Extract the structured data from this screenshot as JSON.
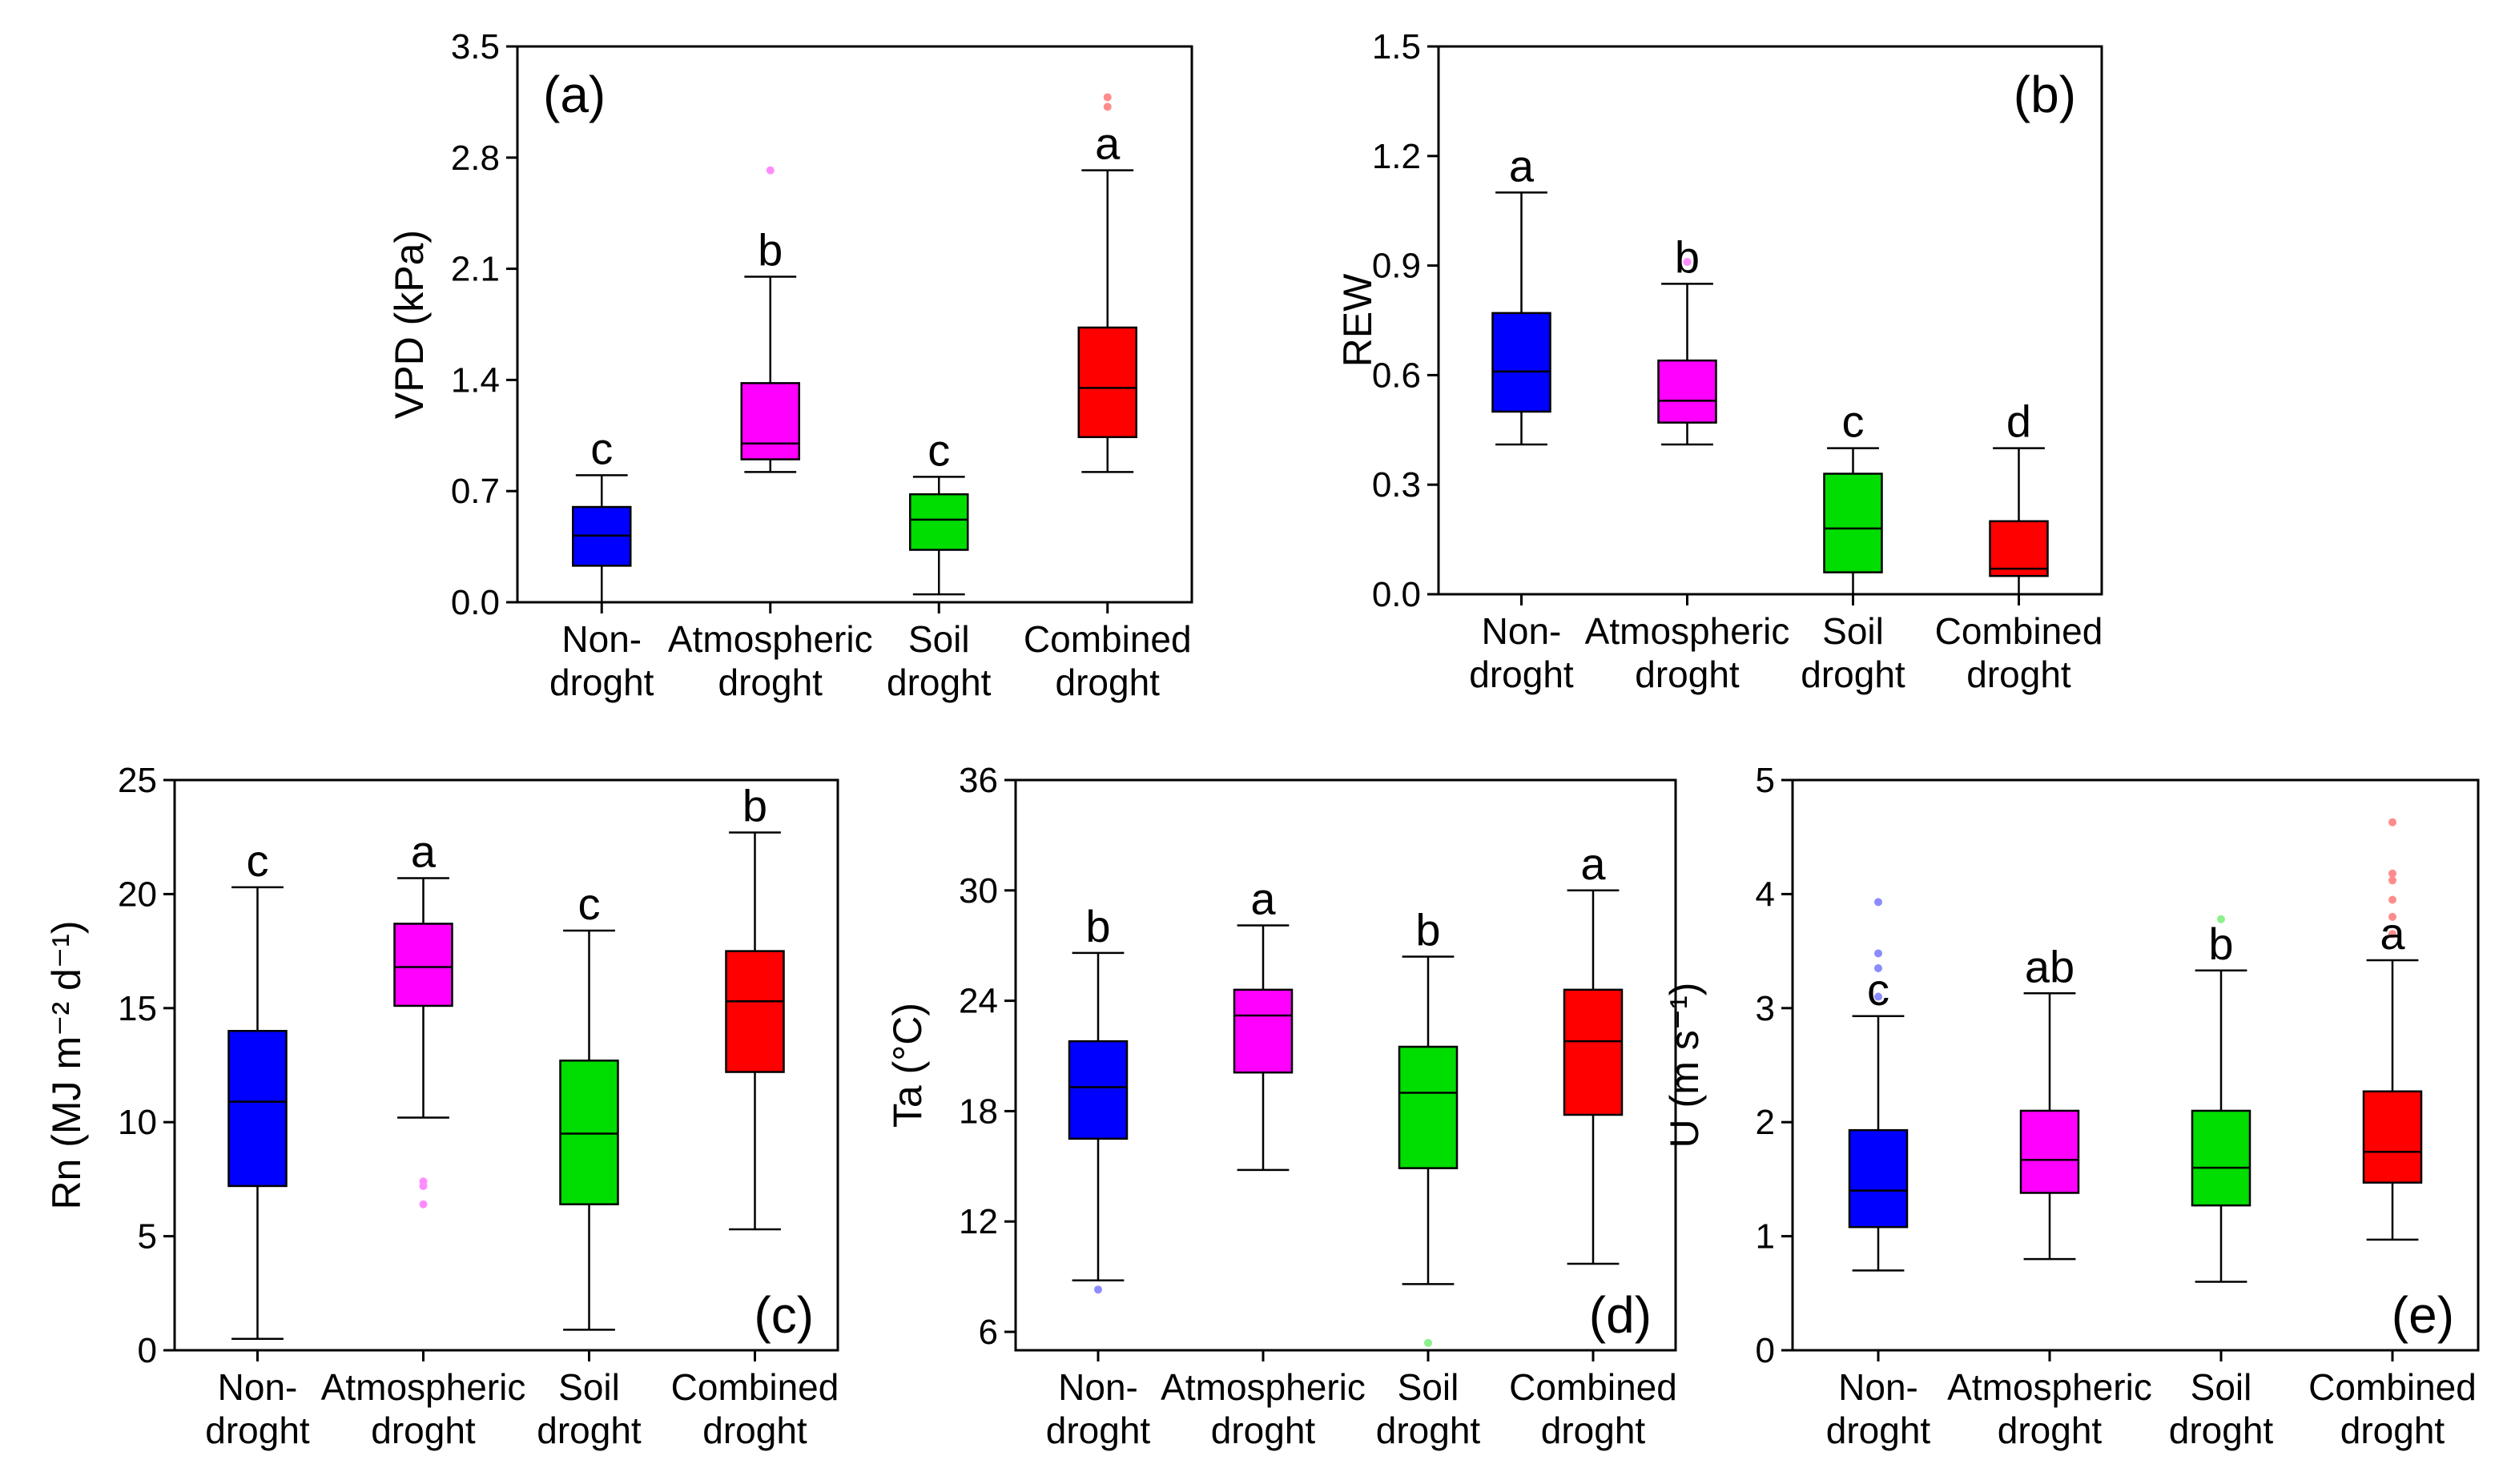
{
  "chart_data": [
    {
      "type": "box",
      "panel_label": "(a)",
      "ylabel": "VPD (kPa)",
      "ylim": [
        0,
        3.5
      ],
      "yticks": [
        "0.0",
        "0.7",
        "1.4",
        "2.1",
        "2.8",
        "3.5"
      ],
      "categories": [
        [
          "Non-",
          "droght"
        ],
        [
          "Atmospheric",
          "droght"
        ],
        [
          "Soil",
          "droght"
        ],
        [
          "Combined",
          "droght"
        ]
      ],
      "boxes": [
        {
          "min": 0.0,
          "q1": 0.23,
          "median": 0.42,
          "q3": 0.6,
          "max": 0.8,
          "color": "#0000ff",
          "letter": "c",
          "outliers": []
        },
        {
          "min": 0.82,
          "q1": 0.9,
          "median": 1.0,
          "q3": 1.38,
          "max": 2.05,
          "color": "#ff00ff",
          "letter": "b",
          "outliers": [
            2.72
          ]
        },
        {
          "min": 0.05,
          "q1": 0.33,
          "median": 0.52,
          "q3": 0.68,
          "max": 0.79,
          "color": "#00dd00",
          "letter": "c",
          "outliers": []
        },
        {
          "min": 0.82,
          "q1": 1.04,
          "median": 1.35,
          "q3": 1.73,
          "max": 2.72,
          "color": "#ff0000",
          "letter": "a",
          "outliers": [
            3.12,
            3.18
          ]
        }
      ]
    },
    {
      "type": "box",
      "panel_label": "(b)",
      "ylabel": "REW",
      "ylim": [
        0,
        1.5
      ],
      "yticks": [
        "0.0",
        "0.3",
        "0.6",
        "0.9",
        "1.2",
        "1.5"
      ],
      "categories": [
        [
          "Non-",
          "droght"
        ],
        [
          "Atmospheric",
          "droght"
        ],
        [
          "Soil",
          "droght"
        ],
        [
          "Combined",
          "droght"
        ]
      ],
      "boxes": [
        {
          "min": 0.41,
          "q1": 0.5,
          "median": 0.61,
          "q3": 0.77,
          "max": 1.1,
          "color": "#0000ff",
          "letter": "a",
          "outliers": []
        },
        {
          "min": 0.41,
          "q1": 0.47,
          "median": 0.53,
          "q3": 0.64,
          "max": 0.85,
          "color": "#ff00ff",
          "letter": "b",
          "outliers": [
            0.91
          ]
        },
        {
          "min": 0.0,
          "q1": 0.06,
          "median": 0.18,
          "q3": 0.33,
          "max": 0.4,
          "color": "#00dd00",
          "letter": "c",
          "outliers": []
        },
        {
          "min": 0.0,
          "q1": 0.05,
          "median": 0.07,
          "q3": 0.2,
          "max": 0.4,
          "color": "#ff0000",
          "letter": "d",
          "outliers": []
        }
      ]
    },
    {
      "type": "box",
      "panel_label": "(c)",
      "ylabel": "Rn (MJ m⁻² d⁻¹)",
      "ylim": [
        0,
        25
      ],
      "yticks": [
        "0",
        "5",
        "10",
        "15",
        "20",
        "25"
      ],
      "categories": [
        [
          "Non-",
          "droght"
        ],
        [
          "Atmospheric",
          "droght"
        ],
        [
          "Soil",
          "droght"
        ],
        [
          "Combined",
          "droght"
        ]
      ],
      "boxes": [
        {
          "min": 0.5,
          "q1": 7.2,
          "median": 10.9,
          "q3": 14.0,
          "max": 20.3,
          "color": "#0000ff",
          "letter": "c",
          "outliers": []
        },
        {
          "min": 10.2,
          "q1": 15.1,
          "median": 16.8,
          "q3": 18.7,
          "max": 20.7,
          "color": "#ff00ff",
          "letter": "a",
          "outliers": [
            6.4,
            7.2,
            7.4
          ]
        },
        {
          "min": 0.9,
          "q1": 6.4,
          "median": 9.5,
          "q3": 12.7,
          "max": 18.4,
          "color": "#00dd00",
          "letter": "c",
          "outliers": []
        },
        {
          "min": 5.3,
          "q1": 12.2,
          "median": 15.3,
          "q3": 17.5,
          "max": 22.7,
          "color": "#ff0000",
          "letter": "b",
          "outliers": []
        }
      ]
    },
    {
      "type": "box",
      "panel_label": "(d)",
      "ylabel": "Ta (°C)",
      "ylim": [
        5,
        36
      ],
      "yticks": [
        "6",
        "12",
        "18",
        "24",
        "30",
        "36"
      ],
      "categories": [
        [
          "Non-",
          "droght"
        ],
        [
          "Atmospheric",
          "droght"
        ],
        [
          "Soil",
          "droght"
        ],
        [
          "Combined",
          "droght"
        ]
      ],
      "boxes": [
        {
          "min": 8.8,
          "q1": 16.5,
          "median": 19.3,
          "q3": 21.8,
          "max": 26.6,
          "color": "#0000ff",
          "letter": "b",
          "outliers": [
            8.3
          ]
        },
        {
          "min": 14.8,
          "q1": 20.1,
          "median": 23.2,
          "q3": 24.6,
          "max": 28.1,
          "color": "#ff00ff",
          "letter": "a",
          "outliers": []
        },
        {
          "min": 8.6,
          "q1": 14.9,
          "median": 19.0,
          "q3": 21.5,
          "max": 26.4,
          "color": "#00dd00",
          "letter": "b",
          "outliers": [
            5.4
          ]
        },
        {
          "min": 9.7,
          "q1": 17.8,
          "median": 21.8,
          "q3": 24.6,
          "max": 30.0,
          "color": "#ff0000",
          "letter": "a",
          "outliers": []
        }
      ]
    },
    {
      "type": "box",
      "panel_label": "(e)",
      "ylabel": "U (m s⁻¹)",
      "ylim": [
        0,
        5
      ],
      "yticks": [
        "0",
        "1",
        "2",
        "3",
        "4",
        "5"
      ],
      "categories": [
        [
          "Non-",
          "droght"
        ],
        [
          "Atmospheric",
          "droght"
        ],
        [
          "Soil",
          "droght"
        ],
        [
          "Combined",
          "droght"
        ]
      ],
      "boxes": [
        {
          "min": 0.7,
          "q1": 1.08,
          "median": 1.4,
          "q3": 1.93,
          "max": 2.93,
          "color": "#0000ff",
          "letter": "c",
          "outliers": [
            3.1,
            3.35,
            3.48,
            3.93
          ]
        },
        {
          "min": 0.8,
          "q1": 1.38,
          "median": 1.67,
          "q3": 2.1,
          "max": 3.13,
          "color": "#ff00ff",
          "letter": "ab",
          "outliers": []
        },
        {
          "min": 0.6,
          "q1": 1.27,
          "median": 1.6,
          "q3": 2.1,
          "max": 3.33,
          "color": "#00dd00",
          "letter": "b",
          "outliers": [
            3.78
          ]
        },
        {
          "min": 0.97,
          "q1": 1.47,
          "median": 1.74,
          "q3": 2.27,
          "max": 3.42,
          "color": "#ff0000",
          "letter": "a",
          "outliers": [
            3.65,
            3.8,
            3.95,
            4.12,
            4.18,
            4.63
          ]
        }
      ]
    }
  ]
}
